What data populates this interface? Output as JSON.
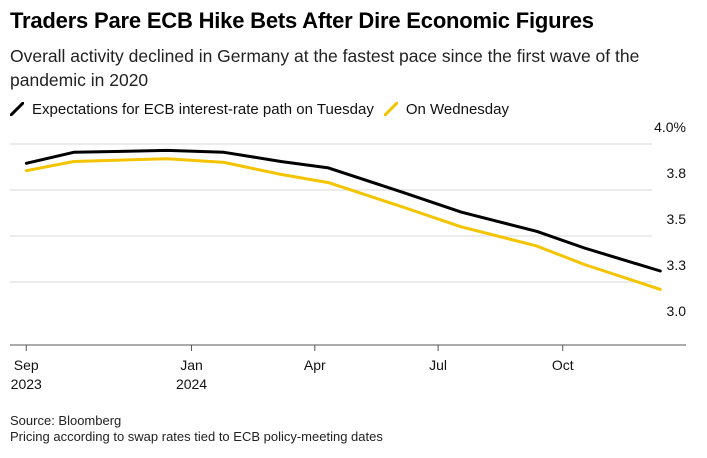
{
  "title": "Traders Pare ECB Hike Bets After Dire Economic Figures",
  "subtitle": "Overall activity declined in Germany at the fastest pace since the first wave of the pandemic in 2020",
  "source": "Source: Bloomberg",
  "note": "Pricing according to swap rates tied to ECB policy-meeting dates",
  "chart_data": {
    "type": "line",
    "title": "Traders Pare ECB Hike Bets After Dire Economic Figures",
    "subtitle": "Overall activity declined in Germany at the fastest pace since the first wave of the pandemic in 2020",
    "xlabel": "",
    "ylabel": "",
    "x_tick_labels": [
      {
        "date": "2023-09-01",
        "label": "Sep",
        "sublabel": "2023"
      },
      {
        "date": "2024-01-01",
        "label": "Jan",
        "sublabel": "2024"
      },
      {
        "date": "2024-04-01",
        "label": "Apr",
        "sublabel": ""
      },
      {
        "date": "2024-07-01",
        "label": "Jul",
        "sublabel": ""
      },
      {
        "date": "2024-10-01",
        "label": "Oct",
        "sublabel": ""
      }
    ],
    "y_ticks": [
      {
        "value": 4.0,
        "label": "4.0%"
      },
      {
        "value": 3.75,
        "label": "3.8"
      },
      {
        "value": 3.5,
        "label": "3.5"
      },
      {
        "value": 3.25,
        "label": "3.3"
      },
      {
        "value": 3.0,
        "label": "3.0"
      }
    ],
    "xlim": [
      "2023-08-20",
      "2024-12-31"
    ],
    "ylim": [
      2.9,
      4.1
    ],
    "grid": true,
    "y_axis_side": "right",
    "legend_position": "top",
    "series": [
      {
        "name": "Expectations for ECB interest-rate path on Tuesday",
        "color": "#000000",
        "points": [
          {
            "x": "2023-09-01",
            "y": 3.895
          },
          {
            "x": "2023-10-06",
            "y": 3.955
          },
          {
            "x": "2023-12-14",
            "y": 3.965
          },
          {
            "x": "2024-01-25",
            "y": 3.955
          },
          {
            "x": "2024-03-07",
            "y": 3.905
          },
          {
            "x": "2024-04-11",
            "y": 3.87
          },
          {
            "x": "2024-06-06",
            "y": 3.735
          },
          {
            "x": "2024-07-18",
            "y": 3.63
          },
          {
            "x": "2024-09-12",
            "y": 3.525
          },
          {
            "x": "2024-10-17",
            "y": 3.435
          },
          {
            "x": "2024-12-12",
            "y": 3.31
          }
        ]
      },
      {
        "name": "On Wednesday",
        "color": "#f5c400",
        "points": [
          {
            "x": "2023-09-01",
            "y": 3.855
          },
          {
            "x": "2023-10-06",
            "y": 3.905
          },
          {
            "x": "2023-12-14",
            "y": 3.92
          },
          {
            "x": "2024-01-25",
            "y": 3.9
          },
          {
            "x": "2024-03-07",
            "y": 3.835
          },
          {
            "x": "2024-04-11",
            "y": 3.79
          },
          {
            "x": "2024-06-06",
            "y": 3.655
          },
          {
            "x": "2024-07-18",
            "y": 3.55
          },
          {
            "x": "2024-09-12",
            "y": 3.445
          },
          {
            "x": "2024-10-17",
            "y": 3.345
          },
          {
            "x": "2024-12-12",
            "y": 3.21
          }
        ]
      }
    ]
  }
}
